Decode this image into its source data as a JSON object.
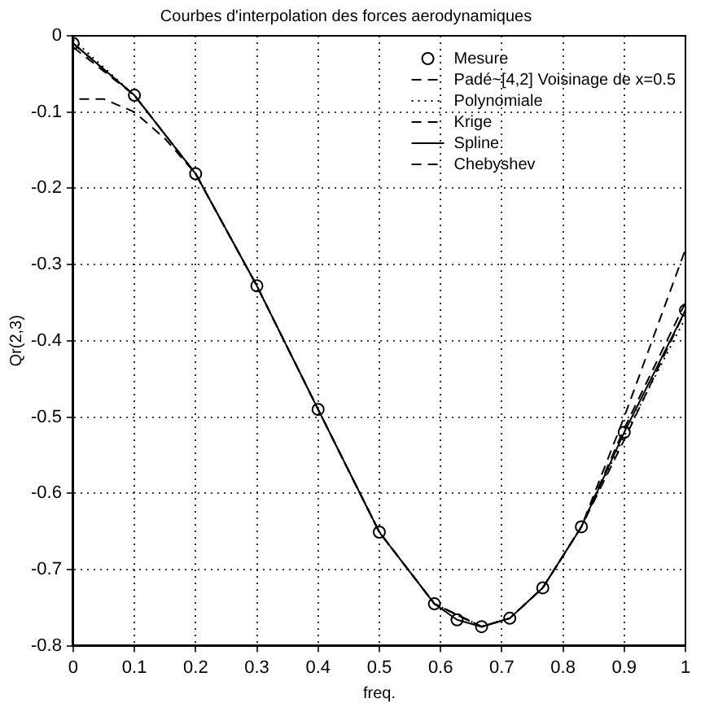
{
  "chart_data": {
    "type": "line",
    "title": "Courbes d'interpolation des forces aerodynamiques",
    "xlabel": "freq.",
    "ylabel": "Qr(2,3)",
    "xlim": [
      0,
      1
    ],
    "xticks": [
      0,
      0.1,
      0.2,
      0.3,
      0.4,
      0.5,
      0.6,
      0.7,
      0.8,
      0.9,
      1
    ],
    "ylim": [
      -0.8,
      0
    ],
    "yticks": [
      -0.8,
      -0.7,
      -0.6,
      -0.5,
      -0.4,
      -0.3,
      -0.2,
      -0.1,
      0
    ],
    "grid": true,
    "legend": "top right",
    "series": [
      {
        "name": "Mesure",
        "type": "scatter",
        "color": "#000000",
        "marker": "circle",
        "x": [
          0,
          0.1,
          0.2,
          0.3,
          0.4,
          0.5,
          0.59,
          0.627,
          0.667,
          0.713,
          0.767,
          0.83,
          0.9,
          1
        ],
        "values": [
          -0.01,
          -0.078,
          -0.181,
          -0.328,
          -0.49,
          -0.651,
          -0.745,
          -0.766,
          -0.775,
          -0.764,
          -0.724,
          -0.644,
          -0.52,
          -0.36
        ]
      },
      {
        "name": "Padé~[4,2] Voisinage de x=0.5",
        "type": "line",
        "color": "#000000",
        "marker": "none",
        "line_style": "dashed",
        "x": [
          0.01,
          0.05,
          0.1,
          0.15,
          0.2,
          0.3,
          0.4,
          0.5,
          0.59,
          0.667,
          0.713,
          0.767,
          0.83,
          0.9,
          1
        ],
        "values": [
          -0.083,
          -0.083,
          -0.1,
          -0.135,
          -0.181,
          -0.328,
          -0.49,
          -0.651,
          -0.745,
          -0.775,
          -0.764,
          -0.724,
          -0.644,
          -0.53,
          -0.36
        ]
      },
      {
        "name": "Polynomiale",
        "type": "line",
        "color": "#000000",
        "marker": "none",
        "line_style": "dotted",
        "x": [
          0,
          0.1,
          0.2,
          0.3,
          0.4,
          0.5,
          0.59,
          0.667,
          0.713,
          0.767,
          0.83,
          0.9,
          1
        ],
        "values": [
          -0.005,
          -0.078,
          -0.181,
          -0.328,
          -0.49,
          -0.651,
          -0.745,
          -0.775,
          -0.764,
          -0.724,
          -0.644,
          -0.525,
          -0.37
        ]
      },
      {
        "name": "Krige",
        "type": "line",
        "color": "#000000",
        "marker": "none",
        "line_style": "dashed",
        "x": [
          0,
          0.1,
          0.2,
          0.3,
          0.4,
          0.5,
          0.59,
          0.667,
          0.713,
          0.767,
          0.83,
          0.9,
          1
        ],
        "values": [
          -0.015,
          -0.078,
          -0.181,
          -0.328,
          -0.49,
          -0.651,
          -0.745,
          -0.775,
          -0.764,
          -0.724,
          -0.644,
          -0.515,
          -0.35
        ]
      },
      {
        "name": "Spline",
        "type": "line",
        "color": "#000000",
        "marker": "none",
        "line_style": "solid",
        "x": [
          0,
          0.1,
          0.2,
          0.3,
          0.4,
          0.5,
          0.59,
          0.627,
          0.667,
          0.713,
          0.767,
          0.83,
          0.9,
          1
        ],
        "values": [
          -0.01,
          -0.078,
          -0.181,
          -0.328,
          -0.49,
          -0.651,
          -0.745,
          -0.766,
          -0.775,
          -0.764,
          -0.724,
          -0.644,
          -0.52,
          -0.36
        ]
      },
      {
        "name": "Chebyshev",
        "type": "line",
        "color": "#000000",
        "marker": "none",
        "line_style": "dashed",
        "x": [
          0,
          0.1,
          0.2,
          0.3,
          0.4,
          0.5,
          0.59,
          0.667,
          0.713,
          0.767,
          0.83,
          0.9,
          1
        ],
        "values": [
          -0.01,
          -0.078,
          -0.181,
          -0.328,
          -0.49,
          -0.651,
          -0.745,
          -0.775,
          -0.764,
          -0.724,
          -0.644,
          -0.5,
          -0.28
        ]
      }
    ]
  }
}
